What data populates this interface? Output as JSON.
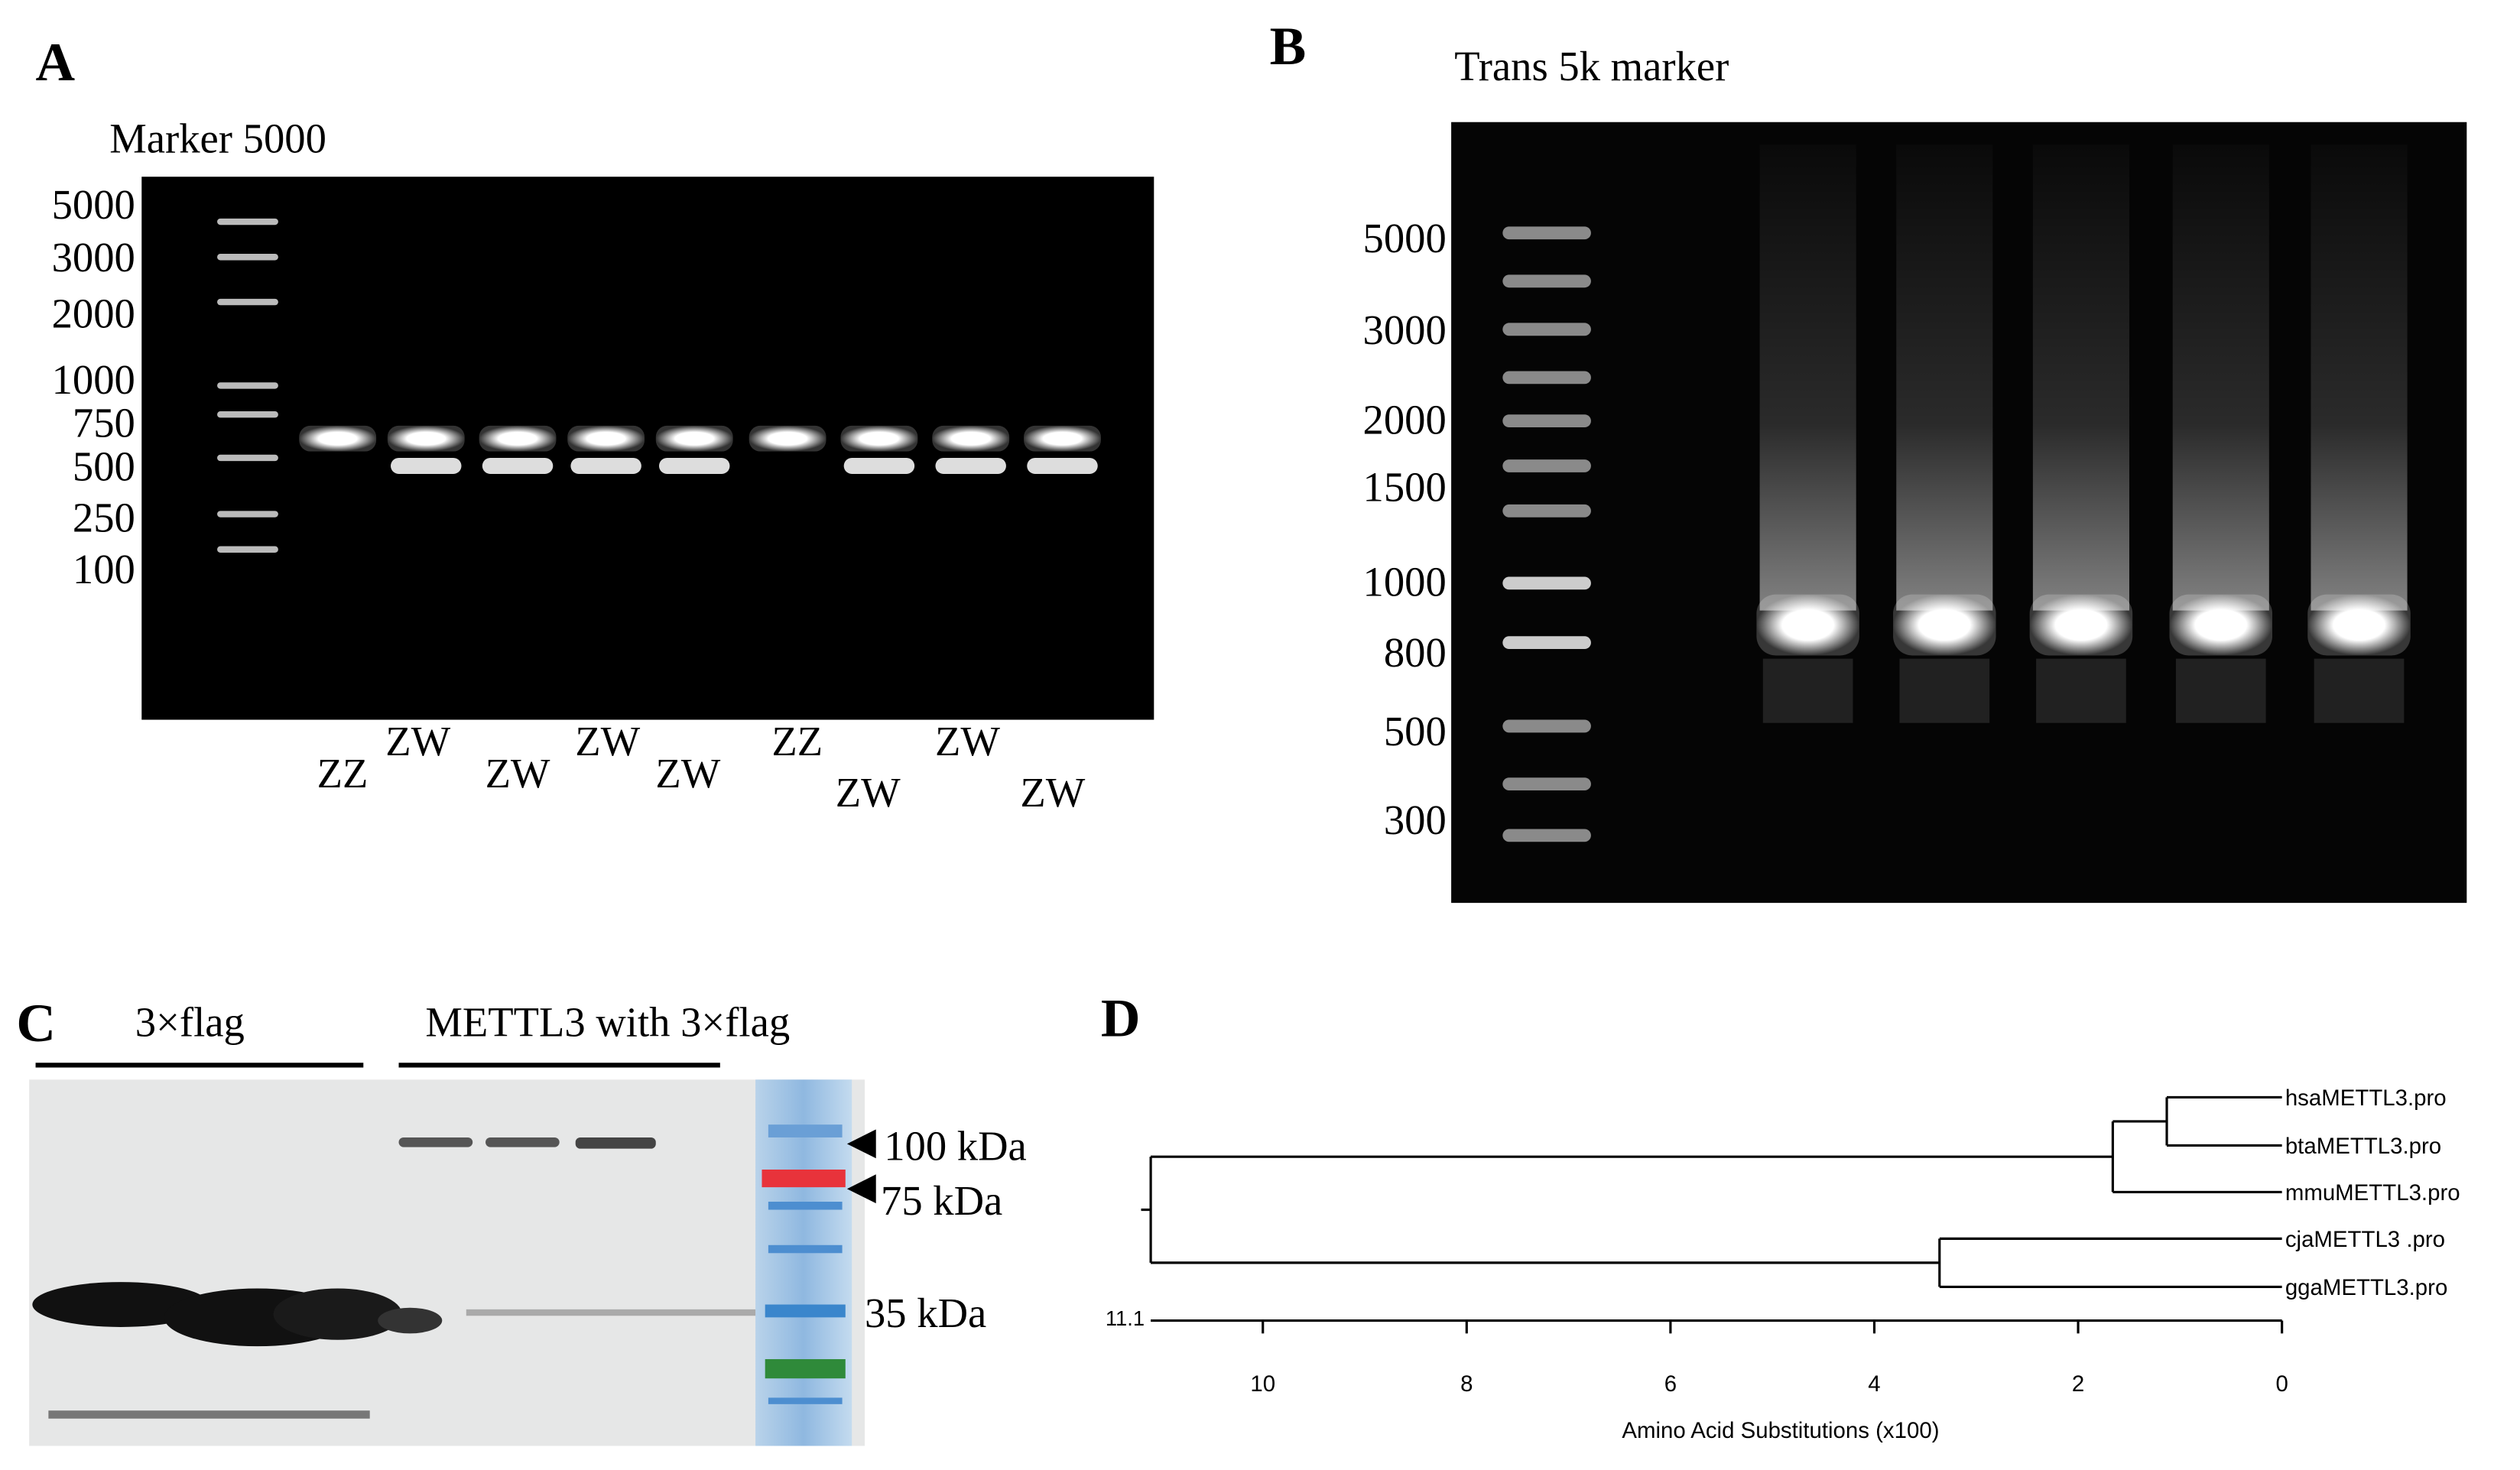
{
  "panel_a": {
    "label": "A",
    "title": "Marker 5000",
    "ladder": [
      5000,
      3000,
      2000,
      1000,
      750,
      500,
      250,
      100
    ],
    "lanes": [
      "ZZ",
      "ZW",
      "ZW",
      "ZW",
      "ZW",
      "ZZ",
      "ZW",
      "ZW",
      "ZW"
    ]
  },
  "panel_b": {
    "label": "B",
    "title": "Trans 5k marker",
    "ladder": [
      5000,
      3000,
      2000,
      1500,
      1000,
      800,
      500,
      300
    ]
  },
  "panel_c": {
    "label": "C",
    "group_1": "3×flag",
    "group_2": "METTL3 with 3×flag",
    "sizes": [
      "100 kDa",
      "75 kDa",
      "35 kDa"
    ]
  },
  "panel_d": {
    "label": "D",
    "leaves": [
      "hsaMETTL3.pro",
      "btaMETTL3.pro",
      "mmuMETTL3.pro",
      "cjaMETTL3 .pro",
      "ggaMETTL3.pro"
    ],
    "root": 11.1,
    "node_heights": [
      1.13,
      1.66,
      3.36
    ],
    "xlim": [
      11.1,
      0
    ],
    "xticks": [
      10,
      8,
      6,
      4,
      2,
      0
    ],
    "xlabel": "Amino Acid Substitutions (x100)"
  }
}
